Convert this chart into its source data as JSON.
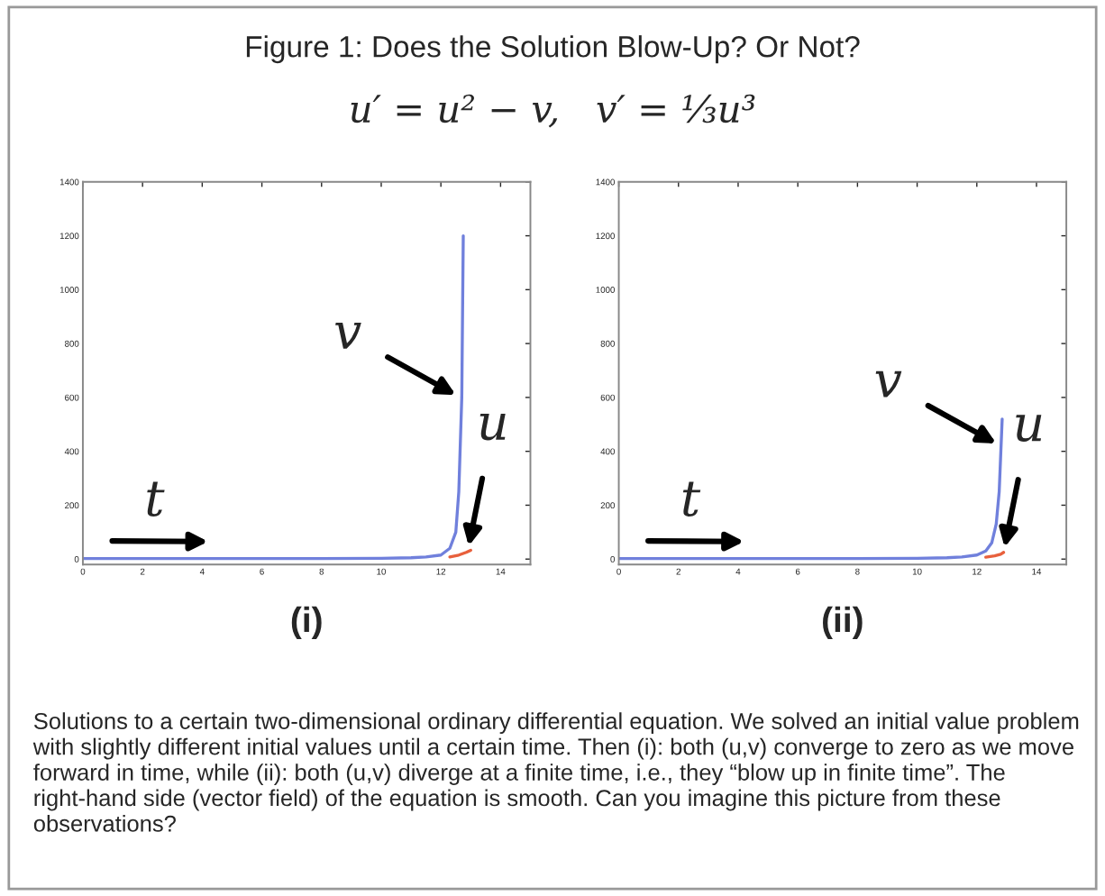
{
  "chart_data": [
    {
      "type": "line",
      "title": "Figure 1: Does the Solution Blow-Up? Or Not?",
      "subtitle": "u′ = u² − v,   v′ = ⅓u³",
      "xlabel": "(i)",
      "x": [
        0,
        2,
        4,
        6,
        8,
        10,
        11,
        11.5,
        12,
        12.3,
        12.5,
        12.6,
        12.7,
        12.75
      ],
      "series": [
        {
          "color": "#7080dc",
          "values": [
            2,
            2,
            2,
            2,
            2,
            3,
            5,
            8,
            15,
            40,
            100,
            250,
            600,
            1200
          ]
        },
        {
          "color": "#e8603c",
          "x": [
            12.3,
            12.6,
            12.85,
            13
          ],
          "values": [
            8,
            15,
            25,
            33
          ]
        }
      ],
      "xlim": [
        0,
        15
      ],
      "ylim": [
        -20,
        1400
      ],
      "xticks": [
        0,
        2,
        4,
        6,
        8,
        10,
        12,
        14
      ],
      "yticks": [
        0,
        200,
        400,
        600,
        800,
        1000,
        1200,
        1400
      ],
      "annotations": [
        "t",
        {
          "text": "v",
          "x": 12.65,
          "y": 600
        },
        {
          "text": "u",
          "x": 12.9,
          "y": 30
        },
        "Solutions to a certain two-dimensional ordinary differential equation. We solved an initial value problem with slightly different initial values until a certain time. Then (i): both (u,v) converge to zero as we move forward in time, while (ii): both (u,v) diverge at a finite time, i.e., they “blow up in finite time”. The right-hand side (vector field) of the equation is smooth. Can you imagine this picture from these observations?"
      ]
    },
    {
      "type": "line",
      "xlabel": "(ii)",
      "x": [
        0,
        2,
        4,
        6,
        8,
        10,
        11,
        11.5,
        12,
        12.3,
        12.5,
        12.65,
        12.75,
        12.85
      ],
      "series": [
        {
          "color": "#7080dc",
          "values": [
            2,
            2,
            2,
            2,
            2,
            3,
            5,
            8,
            15,
            30,
            60,
            130,
            250,
            520
          ]
        },
        {
          "color": "#e8603c",
          "x": [
            12.3,
            12.6,
            12.8,
            12.9
          ],
          "values": [
            7,
            12,
            18,
            25
          ]
        }
      ],
      "xlim": [
        0,
        15
      ],
      "ylim": [
        -20,
        1400
      ],
      "xticks": [
        0,
        2,
        4,
        6,
        8,
        10,
        12,
        14
      ],
      "yticks": [
        0,
        200,
        400,
        600,
        800,
        1000,
        1200,
        1400
      ],
      "annotations": [
        "t",
        {
          "text": "v",
          "x": 12.8,
          "y": 420
        },
        {
          "text": "u",
          "x": 12.9,
          "y": 25
        }
      ]
    }
  ]
}
